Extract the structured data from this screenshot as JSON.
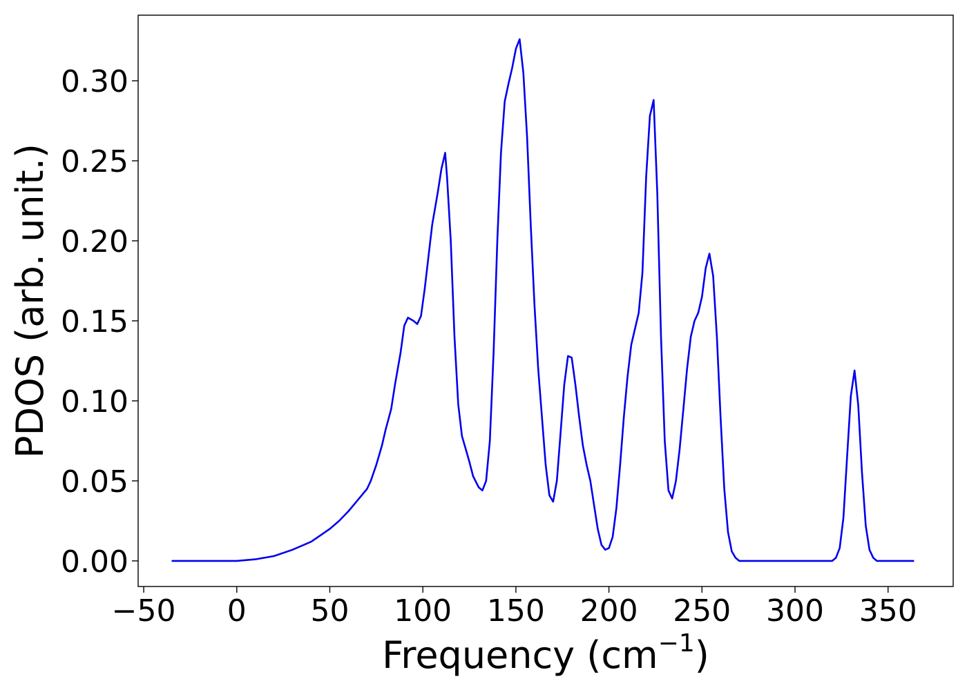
{
  "chart_data": {
    "type": "line",
    "xlabel": "Frequency (cm",
    "xlabel_sup": "−1",
    "xlabel_close": ")",
    "ylabel": "PDOS (arb. unit.)",
    "xlim": [
      -53,
      385
    ],
    "ylim": [
      -0.016,
      0.341
    ],
    "x_ticks": [
      -50,
      0,
      50,
      100,
      150,
      200,
      250,
      300,
      350
    ],
    "x_tick_labels": [
      "−50",
      "0",
      "50",
      "100",
      "150",
      "200",
      "250",
      "300",
      "350"
    ],
    "y_ticks": [
      0.0,
      0.05,
      0.1,
      0.15,
      0.2,
      0.25,
      0.3
    ],
    "y_tick_labels": [
      "0.00",
      "0.05",
      "0.10",
      "0.15",
      "0.20",
      "0.25",
      "0.30"
    ],
    "grid": false,
    "legend": "none",
    "series": [
      {
        "color": "#0000ee",
        "x": [
          -35,
          -20,
          0,
          10,
          20,
          30,
          40,
          45,
          50,
          55,
          60,
          65,
          70,
          72,
          75,
          78,
          80,
          83,
          85,
          88,
          90,
          92,
          95,
          97,
          99,
          101,
          103,
          105,
          108,
          110,
          112,
          113,
          115,
          117,
          119,
          121,
          123,
          125,
          127,
          130,
          132,
          134,
          136,
          138,
          140,
          142,
          144,
          146,
          148,
          150,
          152,
          154,
          156,
          158,
          160,
          162,
          164,
          166,
          168,
          170,
          172,
          174,
          176,
          178,
          180,
          182,
          184,
          186,
          188,
          190,
          192,
          194,
          196,
          198,
          200,
          202,
          204,
          206,
          208,
          210,
          212,
          214,
          216,
          218,
          220,
          222,
          224,
          226,
          228,
          230,
          232,
          234,
          236,
          238,
          240,
          242,
          244,
          246,
          248,
          250,
          252,
          254,
          256,
          258,
          260,
          262,
          264,
          266,
          268,
          270,
          272,
          280,
          300,
          318,
          320,
          322,
          324,
          326,
          328,
          330,
          332,
          334,
          336,
          338,
          340,
          342,
          344,
          350,
          364
        ],
        "y": [
          0.0,
          0.0,
          0.0,
          0.001,
          0.003,
          0.007,
          0.012,
          0.016,
          0.02,
          0.025,
          0.031,
          0.038,
          0.045,
          0.05,
          0.06,
          0.072,
          0.082,
          0.095,
          0.11,
          0.13,
          0.147,
          0.152,
          0.15,
          0.148,
          0.153,
          0.17,
          0.19,
          0.21,
          0.23,
          0.245,
          0.255,
          0.24,
          0.2,
          0.14,
          0.098,
          0.078,
          0.07,
          0.062,
          0.053,
          0.046,
          0.044,
          0.05,
          0.075,
          0.13,
          0.2,
          0.255,
          0.287,
          0.298,
          0.308,
          0.32,
          0.326,
          0.305,
          0.265,
          0.21,
          0.16,
          0.12,
          0.09,
          0.06,
          0.041,
          0.037,
          0.05,
          0.08,
          0.11,
          0.128,
          0.127,
          0.11,
          0.09,
          0.072,
          0.06,
          0.05,
          0.035,
          0.02,
          0.01,
          0.007,
          0.008,
          0.015,
          0.033,
          0.06,
          0.09,
          0.115,
          0.135,
          0.145,
          0.155,
          0.18,
          0.24,
          0.278,
          0.288,
          0.23,
          0.14,
          0.075,
          0.044,
          0.039,
          0.05,
          0.07,
          0.095,
          0.12,
          0.14,
          0.15,
          0.155,
          0.165,
          0.183,
          0.192,
          0.178,
          0.14,
          0.09,
          0.045,
          0.018,
          0.006,
          0.002,
          0.0,
          0.0,
          0.0,
          0.0,
          0.0,
          0.0,
          0.002,
          0.008,
          0.027,
          0.065,
          0.103,
          0.119,
          0.097,
          0.055,
          0.022,
          0.007,
          0.002,
          0.0,
          0.0,
          0.0
        ]
      }
    ]
  }
}
